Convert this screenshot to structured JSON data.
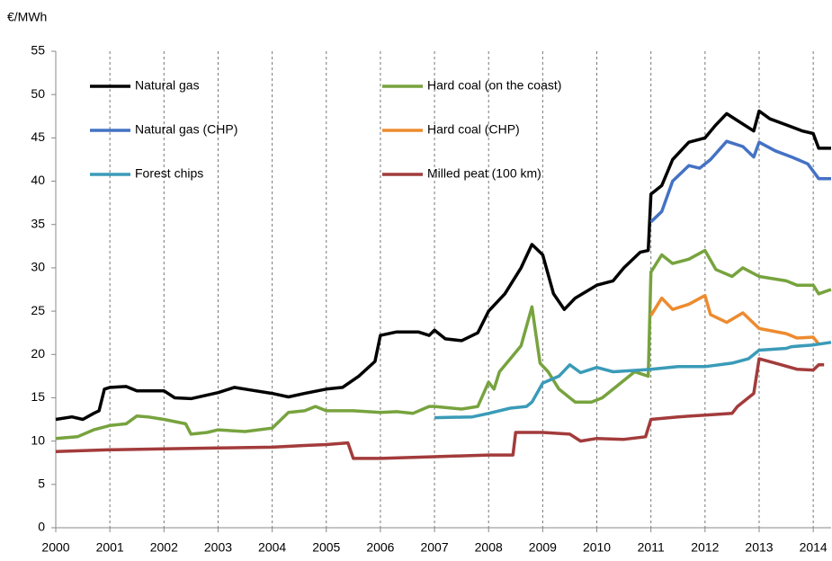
{
  "chart_data": {
    "type": "line",
    "y_label": "€/MWh",
    "xlim": [
      2000,
      2014.33
    ],
    "xticks": [
      2000,
      2001,
      2002,
      2003,
      2004,
      2005,
      2006,
      2007,
      2008,
      2009,
      2010,
      2011,
      2012,
      2013,
      2014
    ],
    "ylim": [
      0,
      55
    ],
    "yticks": [
      0,
      5,
      10,
      15,
      20,
      25,
      30,
      35,
      40,
      45,
      50,
      55
    ],
    "grid": true,
    "series": [
      {
        "name": "Natural gas",
        "color": "#000000",
        "x": [
          2000,
          2000.3,
          2000.5,
          2000.7,
          2000.8,
          2000.9,
          2001,
          2001.3,
          2001.5,
          2002,
          2002.2,
          2002.5,
          2003,
          2003.3,
          2003.6,
          2004,
          2004.3,
          2004.6,
          2005,
          2005.3,
          2005.6,
          2005.9,
          2006,
          2006.3,
          2006.7,
          2006.9,
          2007,
          2007.2,
          2007.5,
          2007.8,
          2008,
          2008.3,
          2008.6,
          2008.8,
          2009,
          2009.2,
          2009.4,
          2009.6,
          2010,
          2010.3,
          2010.5,
          2010.8,
          2010.95,
          2011,
          2011.2,
          2011.4,
          2011.7,
          2012,
          2012.2,
          2012.4,
          2012.6,
          2012.9,
          2013,
          2013.2,
          2013.5,
          2013.8,
          2014,
          2014.1,
          2014.33
        ],
        "values": [
          12.5,
          12.8,
          12.5,
          13.2,
          13.5,
          16,
          16.2,
          16.3,
          15.8,
          15.8,
          15,
          14.9,
          15.6,
          16.2,
          15.9,
          15.5,
          15.1,
          15.5,
          16,
          16.2,
          17.5,
          19.2,
          22.2,
          22.6,
          22.6,
          22.2,
          22.8,
          21.8,
          21.6,
          22.5,
          25,
          27,
          30,
          32.7,
          31.5,
          27,
          25.2,
          26.5,
          28,
          28.5,
          30,
          31.8,
          32,
          38.5,
          39.5,
          42.5,
          44.5,
          45,
          46.5,
          47.8,
          47,
          45.8,
          48.1,
          47.2,
          46.5,
          45.8,
          45.5,
          43.8,
          43.8
        ]
      },
      {
        "name": "Hard coal (on the coast)",
        "color": "#77a33e",
        "x": [
          2000,
          2000.4,
          2000.7,
          2001,
          2001.3,
          2001.5,
          2001.7,
          2002,
          2002.4,
          2002.5,
          2002.8,
          2003,
          2003.5,
          2004,
          2004.3,
          2004.6,
          2004.8,
          2005,
          2005.5,
          2006,
          2006.3,
          2006.6,
          2006.9,
          2007,
          2007.5,
          2007.8,
          2008,
          2008.1,
          2008.2,
          2008.4,
          2008.6,
          2008.8,
          2008.95,
          2009.1,
          2009.3,
          2009.6,
          2009.9,
          2010.1,
          2010.4,
          2010.7,
          2010.95,
          2011,
          2011.2,
          2011.4,
          2011.7,
          2012,
          2012.2,
          2012.5,
          2012.7,
          2013,
          2013.5,
          2013.7,
          2014,
          2014.1,
          2014.33
        ],
        "values": [
          10.3,
          10.5,
          11.3,
          11.8,
          12,
          12.9,
          12.8,
          12.5,
          12,
          10.8,
          11,
          11.3,
          11.1,
          11.5,
          13.3,
          13.5,
          14,
          13.5,
          13.5,
          13.3,
          13.4,
          13.2,
          14,
          14,
          13.7,
          14,
          16.8,
          16,
          18,
          19.5,
          21,
          25.5,
          19,
          18,
          16,
          14.5,
          14.5,
          15,
          16.5,
          18,
          17.5,
          29.5,
          31.5,
          30.5,
          31,
          32,
          29.8,
          29,
          30,
          29,
          28.5,
          28,
          28,
          27,
          27.5
        ]
      },
      {
        "name": "Natural gas (CHP)",
        "color": "#4472c4",
        "x": [
          2011,
          2011.2,
          2011.4,
          2011.7,
          2011.9,
          2012.1,
          2012.4,
          2012.7,
          2012.9,
          2013,
          2013.3,
          2013.6,
          2013.9,
          2014.1,
          2014.33
        ],
        "values": [
          35.3,
          36.5,
          40,
          41.8,
          41.5,
          42.5,
          44.6,
          44,
          42.8,
          44.5,
          43.5,
          42.8,
          42,
          40.3,
          40.3
        ]
      },
      {
        "name": "Hard coal (CHP)",
        "color": "#ed8b2f",
        "x": [
          2011,
          2011.2,
          2011.4,
          2011.7,
          2012,
          2012.1,
          2012.4,
          2012.7,
          2013,
          2013.5,
          2013.7,
          2014,
          2014.1
        ],
        "values": [
          24.5,
          26.5,
          25.2,
          25.8,
          26.8,
          24.6,
          23.7,
          24.8,
          23,
          22.4,
          21.9,
          22,
          21.2
        ]
      },
      {
        "name": "Forest chips",
        "color": "#3a9bb8",
        "x": [
          2007,
          2007.7,
          2008,
          2008.4,
          2008.7,
          2008.8,
          2009,
          2009.3,
          2009.5,
          2009.7,
          2010,
          2010.3,
          2010.8,
          2011,
          2011.5,
          2012,
          2012.5,
          2012.8,
          2013,
          2013.5,
          2013.6,
          2014,
          2014.33
        ],
        "values": [
          12.7,
          12.8,
          13.2,
          13.8,
          14,
          14.5,
          16.7,
          17.5,
          18.8,
          17.9,
          18.5,
          18,
          18.2,
          18.3,
          18.6,
          18.6,
          19,
          19.5,
          20.5,
          20.7,
          20.9,
          21.1,
          21.4
        ]
      },
      {
        "name": "Milled peat (100 km)",
        "color": "#a33b3b",
        "x": [
          2000,
          2001,
          2002,
          2003,
          2004,
          2004.6,
          2005,
          2005.4,
          2005.5,
          2006,
          2007,
          2008,
          2008.45,
          2008.5,
          2009,
          2009.5,
          2009.7,
          2010,
          2010.5,
          2010.9,
          2011,
          2011.5,
          2012,
          2012.5,
          2012.6,
          2012.9,
          2013,
          2013.3,
          2013.7,
          2014,
          2014.1,
          2014.2
        ],
        "values": [
          8.8,
          9,
          9.1,
          9.2,
          9.3,
          9.5,
          9.6,
          9.8,
          8,
          8,
          8.2,
          8.4,
          8.4,
          11,
          11,
          10.8,
          10,
          10.3,
          10.2,
          10.5,
          12.5,
          12.8,
          13,
          13.2,
          14,
          15.5,
          19.5,
          19,
          18.3,
          18.2,
          18.8,
          18.8
        ]
      }
    ]
  }
}
